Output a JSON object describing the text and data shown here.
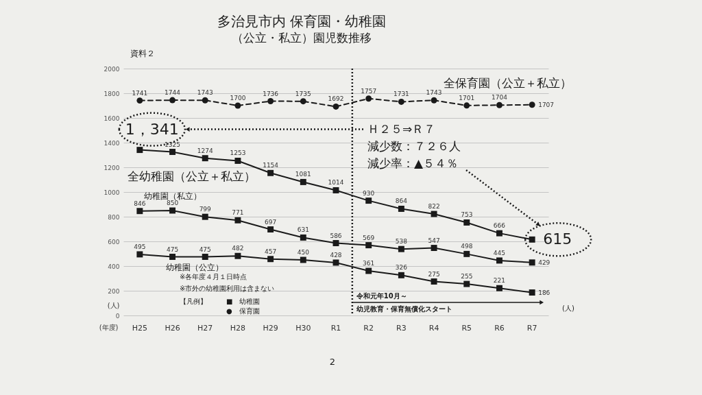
{
  "chart_data": {
    "type": "line",
    "title": "多治見市内 保育園・幼稚園",
    "subtitle": "（公立・私立）園児数推移",
    "xlabel": "(年度)",
    "ylabel": "(人)",
    "categories": [
      "H25",
      "H26",
      "H27",
      "H28",
      "H29",
      "H30",
      "R1",
      "R2",
      "R3",
      "R4",
      "R5",
      "R6",
      "R7"
    ],
    "series": [
      {
        "name": "全保育園（公立＋私立）",
        "color": "#1a1a1a",
        "marker": "circle",
        "line_style": "dashed",
        "values": [
          1741,
          1744,
          1743,
          1700,
          1736,
          1735,
          1692,
          1757,
          1731,
          1743,
          1701,
          1704,
          1707
        ]
      },
      {
        "name": "全幼稚園（公立＋私立）",
        "color": "#1a1a1a",
        "marker": "square",
        "line_style": "solid",
        "values": [
          1341,
          1325,
          1274,
          1253,
          1154,
          1081,
          1014,
          930,
          864,
          822,
          753,
          666,
          615
        ],
        "value_labels": [
          null,
          "1325",
          "1274",
          "1253",
          "1154",
          "1081",
          "1014",
          "930",
          "864",
          "822",
          "753",
          "666",
          null
        ]
      },
      {
        "name": "幼稚園（私立）",
        "color": "#1a1a1a",
        "marker": "square",
        "line_style": "solid",
        "values": [
          846,
          850,
          799,
          771,
          697,
          631,
          586,
          569,
          538,
          547,
          498,
          445,
          429
        ]
      },
      {
        "name": "幼稚園（公立）",
        "color": "#1a1a1a",
        "marker": "square",
        "line_style": "solid",
        "values": [
          495,
          475,
          475,
          482,
          457,
          450,
          428,
          361,
          326,
          275,
          255,
          221,
          186
        ]
      }
    ],
    "ylim": [
      0,
      2000
    ],
    "yticks": [
      0,
      200,
      400,
      600,
      800,
      1000,
      1200,
      1400,
      1600,
      1800,
      2000
    ],
    "grid": "y",
    "data_labels": true,
    "ref_lines": [
      {
        "axis": "x",
        "value": "R2",
        "label": "令和元年10月～",
        "line_style": "dotted",
        "color": "#1a1a1a"
      }
    ],
    "annotations": [
      "資料２",
      {
        "text": "1，341",
        "x": "H25",
        "y": 1341
      },
      "Ｈ２５⇒Ｒ７",
      "減少数：７２６人",
      "減少率：▲５４％",
      {
        "text": "615",
        "x": "R7",
        "y": 615
      },
      "※各年度４月１日時点",
      "※市外の幼稚園利用は含まない",
      "【凡例】",
      "■　幼稚園",
      "●　保育園",
      "(人)",
      "2",
      "幼児教育・保育無償化スタート"
    ]
  }
}
